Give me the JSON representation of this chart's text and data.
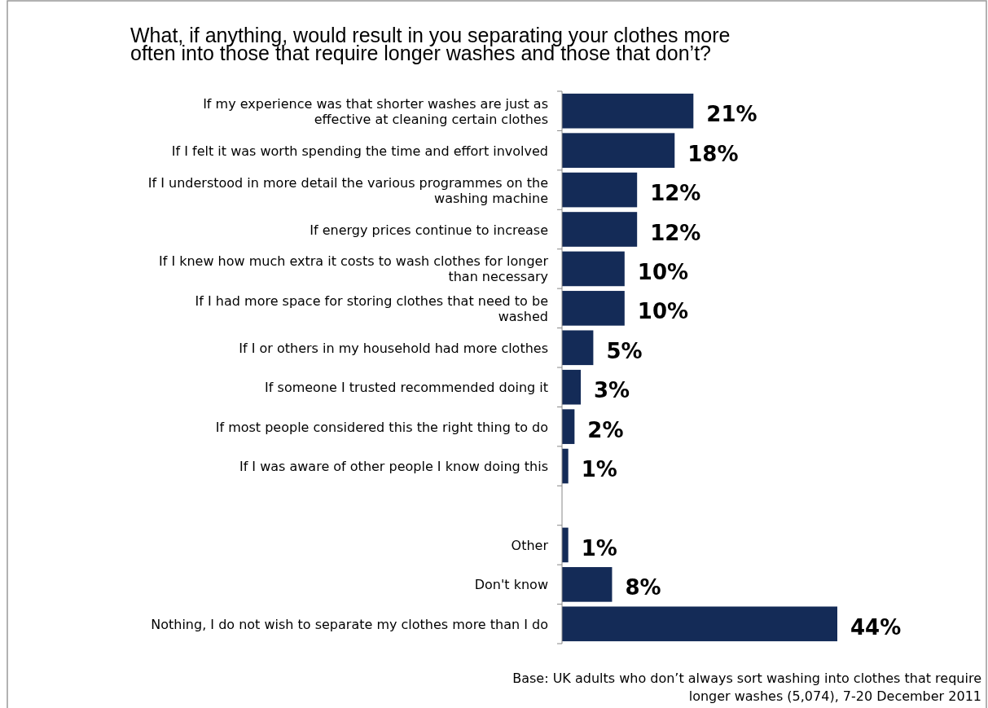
{
  "chart_data": {
    "type": "bar",
    "orientation": "horizontal",
    "data_labels": true,
    "color": "#142b57",
    "title": "What, if anything, would result in you separating your clothes more\noften into those that require longer washes and those that don’t?",
    "categories": [
      "If my experience was that shorter washes are just as\neffective at cleaning certain clothes",
      "If I felt it was worth spending the time and effort involved",
      "If I understood in more detail the various programmes on the\nwashing machine",
      "If energy prices continue to increase",
      "If I knew how much extra it costs to wash clothes for longer\nthan necessary",
      "If I had more space for storing clothes that need to be\nwashed",
      "If I or others in my household had more clothes",
      "If someone I trusted recommended doing it",
      "If most people considered this the right thing to do",
      "If I was aware of other people I know doing this",
      null,
      "Other",
      "Don't know",
      "Nothing, I do not wish to separate my clothes more than I do"
    ],
    "values": [
      21,
      18,
      12,
      12,
      10,
      10,
      5,
      3,
      2,
      1,
      null,
      1,
      8,
      44
    ],
    "value_labels": [
      "21%",
      "18%",
      "12%",
      "12%",
      "10%",
      "10%",
      "5%",
      "3%",
      "2%",
      "1%",
      null,
      "1%",
      "8%",
      "44%"
    ],
    "annotations": [
      "Base: UK adults who don’t always sort washing into clothes that require\nlonger washes (5,074), 7-20 December 2011"
    ]
  }
}
